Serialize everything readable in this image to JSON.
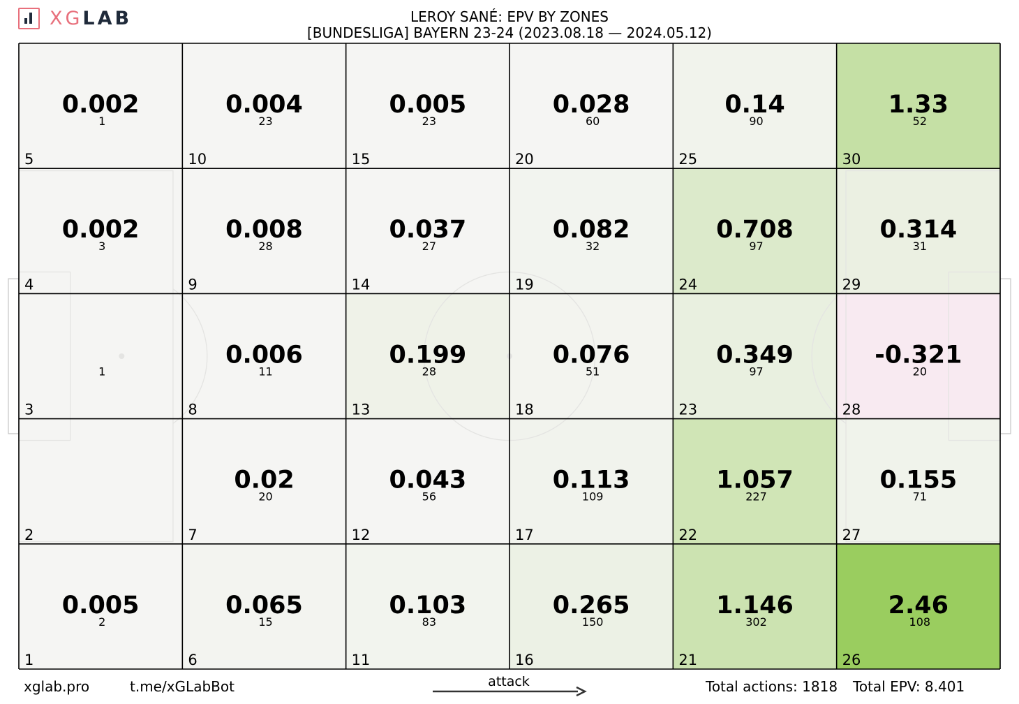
{
  "logo": {
    "text_a": "XG",
    "text_b": "LAB"
  },
  "header": {
    "title": "LEROY SANÉ: EPV BY ZONES",
    "subtitle": "[BUNDESLIGA] BAYERN 23-24 (2023.08.18 — 2024.05.12)"
  },
  "footer": {
    "site": "xglab.pro",
    "bot": "t.me/xGLabBot",
    "attack_label": "attack",
    "total_actions": "Total actions: 1818",
    "total_epv": "Total EPV: 8.401"
  },
  "colors": {
    "neutral": "#f5f5f3",
    "positive": "#9acd5f",
    "negative": "#f8eaf1",
    "grid": "#000000"
  },
  "chart_data": {
    "type": "heatmap",
    "columns": 6,
    "rows": 5,
    "zones": [
      {
        "zone": 1,
        "epv": "0.005",
        "actions": "2"
      },
      {
        "zone": 2,
        "epv": "",
        "actions": ""
      },
      {
        "zone": 3,
        "epv": "",
        "actions": "1"
      },
      {
        "zone": 4,
        "epv": "0.002",
        "actions": "3"
      },
      {
        "zone": 5,
        "epv": "0.002",
        "actions": "1"
      },
      {
        "zone": 6,
        "epv": "0.065",
        "actions": "15"
      },
      {
        "zone": 7,
        "epv": "0.02",
        "actions": "20"
      },
      {
        "zone": 8,
        "epv": "0.006",
        "actions": "11"
      },
      {
        "zone": 9,
        "epv": "0.008",
        "actions": "28"
      },
      {
        "zone": 10,
        "epv": "0.004",
        "actions": "23"
      },
      {
        "zone": 11,
        "epv": "0.103",
        "actions": "83"
      },
      {
        "zone": 12,
        "epv": "0.043",
        "actions": "56"
      },
      {
        "zone": 13,
        "epv": "0.199",
        "actions": "28"
      },
      {
        "zone": 14,
        "epv": "0.037",
        "actions": "27"
      },
      {
        "zone": 15,
        "epv": "0.005",
        "actions": "23"
      },
      {
        "zone": 16,
        "epv": "0.265",
        "actions": "150"
      },
      {
        "zone": 17,
        "epv": "0.113",
        "actions": "109"
      },
      {
        "zone": 18,
        "epv": "0.076",
        "actions": "51"
      },
      {
        "zone": 19,
        "epv": "0.082",
        "actions": "32"
      },
      {
        "zone": 20,
        "epv": "0.028",
        "actions": "60"
      },
      {
        "zone": 21,
        "epv": "1.146",
        "actions": "302"
      },
      {
        "zone": 22,
        "epv": "1.057",
        "actions": "227"
      },
      {
        "zone": 23,
        "epv": "0.349",
        "actions": "97"
      },
      {
        "zone": 24,
        "epv": "0.708",
        "actions": "97"
      },
      {
        "zone": 25,
        "epv": "0.14",
        "actions": "90"
      },
      {
        "zone": 26,
        "epv": "2.46",
        "actions": "108"
      },
      {
        "zone": 27,
        "epv": "0.155",
        "actions": "71"
      },
      {
        "zone": 28,
        "epv": "-0.321",
        "actions": "20"
      },
      {
        "zone": 29,
        "epv": "0.314",
        "actions": "31"
      },
      {
        "zone": 30,
        "epv": "1.33",
        "actions": "52"
      }
    ]
  }
}
